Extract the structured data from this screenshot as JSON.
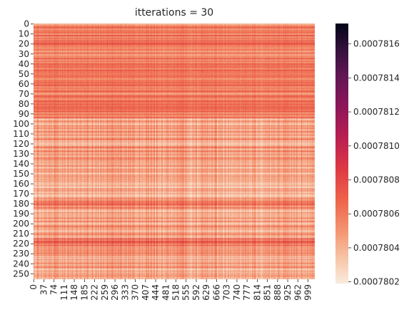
{
  "chart_data": {
    "type": "heatmap",
    "title": "itterations = 30",
    "xlabel": "",
    "ylabel": "",
    "rows": 256,
    "cols": 1024,
    "x_tick_labels": [
      "0",
      "37",
      "74",
      "111",
      "148",
      "185",
      "222",
      "259",
      "296",
      "333",
      "370",
      "407",
      "444",
      "481",
      "518",
      "555",
      "592",
      "629",
      "666",
      "703",
      "740",
      "777",
      "814",
      "851",
      "888",
      "925",
      "962",
      "999"
    ],
    "y_tick_labels": [
      "0",
      "10",
      "20",
      "30",
      "40",
      "50",
      "60",
      "70",
      "80",
      "90",
      "100",
      "110",
      "120",
      "130",
      "140",
      "150",
      "160",
      "170",
      "180",
      "190",
      "200",
      "210",
      "220",
      "230",
      "240",
      "250"
    ],
    "colorbar": {
      "min": 0.00078019,
      "max": 0.00078172,
      "tick_labels": [
        "0.0007802",
        "0.0007804",
        "0.0007806",
        "0.0007808",
        "0.0007810",
        "0.0007812",
        "0.0007814",
        "0.0007816"
      ],
      "tick_values": [
        0.0007802,
        0.0007804,
        0.0007806,
        0.0007808,
        0.000781,
        0.0007812,
        0.0007814,
        0.0007816
      ],
      "colormap": "rocket_r",
      "color_low": "#faebdd",
      "color_high": "#03051a"
    },
    "value_range_observed": [
      0.0007802,
      0.0007809
    ],
    "grid": false,
    "legend": "colorbar-right"
  }
}
